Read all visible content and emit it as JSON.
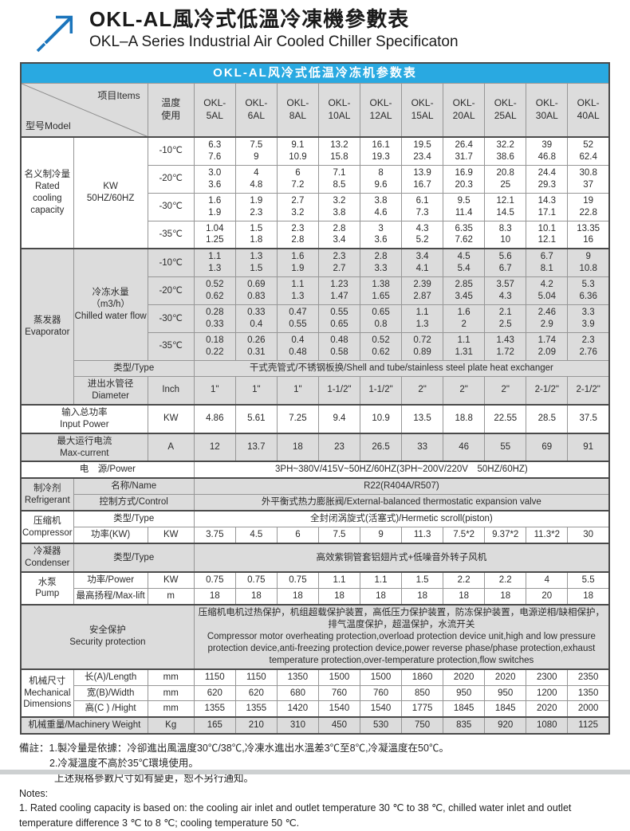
{
  "page": {
    "title_zh": "OKL-AL風冷式低溫冷凍機參數表",
    "title_en": "OKL–A Series Industrial Air Cooled Chiller Specificaton",
    "accent_blue": "#29a9e1",
    "arrow_blue": "#1b75bc",
    "section_gray": "#dcdcdc"
  },
  "table": {
    "title": "OKL-AL风冷式低温冷冻机参数表",
    "corner": {
      "model_label": "型号Model",
      "items_label": "项目Items"
    },
    "temp_header": "温度\n使用",
    "models": [
      "OKL-\n5AL",
      "OKL-\n6AL",
      "OKL-\n8AL",
      "OKL-\n10AL",
      "OKL-\n12AL",
      "OKL-\n15AL",
      "OKL-\n20AL",
      "OKL-\n25AL",
      "OKL-\n30AL",
      "OKL-\n40AL"
    ],
    "rows": [
      {
        "bg": "white",
        "section": true,
        "cells": [
          {
            "t": "名义制冷量\nRated\ncooling\ncapacity",
            "k": "lab1",
            "rs": 4
          },
          {
            "t": "KW\n50HZ/60HZ",
            "k": "lab2",
            "rs": 4
          },
          {
            "t": "-10℃",
            "k": "unit"
          },
          {
            "t": "6.3\n7.6"
          },
          {
            "t": "7.5\n9"
          },
          {
            "t": "9.1\n10.9"
          },
          {
            "t": "13.2\n15.8"
          },
          {
            "t": "16.1\n19.3"
          },
          {
            "t": "19.5\n23.4"
          },
          {
            "t": "26.4\n31.7"
          },
          {
            "t": "32.2\n38.6"
          },
          {
            "t": "39\n46.8"
          },
          {
            "t": "52\n62.4"
          }
        ]
      },
      {
        "bg": "white",
        "cells": [
          {
            "t": "-20℃",
            "k": "unit"
          },
          {
            "t": "3.0\n3.6"
          },
          {
            "t": "4\n4.8"
          },
          {
            "t": "6\n7.2"
          },
          {
            "t": "7.1\n8.5"
          },
          {
            "t": "8\n9.6"
          },
          {
            "t": "13.9\n16.7"
          },
          {
            "t": "16.9\n20.3"
          },
          {
            "t": "20.8\n25"
          },
          {
            "t": "24.4\n29.3"
          },
          {
            "t": "30.8\n37"
          }
        ]
      },
      {
        "bg": "white",
        "cells": [
          {
            "t": "-30℃",
            "k": "unit"
          },
          {
            "t": "1.6\n1.9"
          },
          {
            "t": "1.9\n2.3"
          },
          {
            "t": "2.7\n3.2"
          },
          {
            "t": "3.2\n3.8"
          },
          {
            "t": "3.8\n4.6"
          },
          {
            "t": "6.1\n7.3"
          },
          {
            "t": "9.5\n11.4"
          },
          {
            "t": "12.1\n14.5"
          },
          {
            "t": "14.3\n17.1"
          },
          {
            "t": "19\n22.8"
          }
        ]
      },
      {
        "bg": "white",
        "cells": [
          {
            "t": "-35℃",
            "k": "unit"
          },
          {
            "t": "1.04\n1.25"
          },
          {
            "t": "1.5\n1.8"
          },
          {
            "t": "2.3\n2.8"
          },
          {
            "t": "2.8\n3.4"
          },
          {
            "t": "3\n3.6"
          },
          {
            "t": "4.3\n5.2"
          },
          {
            "t": "6.35\n7.62"
          },
          {
            "t": "8.3\n10"
          },
          {
            "t": "10.1\n12.1"
          },
          {
            "t": "13.35\n16"
          }
        ]
      },
      {
        "bg": "gray",
        "section": true,
        "cells": [
          {
            "t": "蒸发器\nEvaporator",
            "k": "lab1",
            "rs": 6
          },
          {
            "t": "冷冻水量（m3/h）\nChilled water flow",
            "k": "lab2",
            "rs": 4
          },
          {
            "t": "-10℃",
            "k": "unit"
          },
          {
            "t": "1.1\n1.3"
          },
          {
            "t": "1.3\n1.5"
          },
          {
            "t": "1.6\n1.9"
          },
          {
            "t": "2.3\n2.7"
          },
          {
            "t": "2.8\n3.3"
          },
          {
            "t": "3.4\n4.1"
          },
          {
            "t": "4.5\n5.4"
          },
          {
            "t": "5.6\n6.7"
          },
          {
            "t": "6.7\n8.1"
          },
          {
            "t": "9\n10.8"
          }
        ]
      },
      {
        "bg": "gray",
        "cells": [
          {
            "t": "-20℃",
            "k": "unit"
          },
          {
            "t": "0.52\n0.62"
          },
          {
            "t": "0.69\n0.83"
          },
          {
            "t": "1.1\n1.3"
          },
          {
            "t": "1.23\n1.47"
          },
          {
            "t": "1.38\n1.65"
          },
          {
            "t": "2.39\n2.87"
          },
          {
            "t": "2.85\n3.45"
          },
          {
            "t": "3.57\n4.3"
          },
          {
            "t": "4.2\n5.04"
          },
          {
            "t": "5.3\n6.36"
          }
        ]
      },
      {
        "bg": "gray",
        "cells": [
          {
            "t": "-30℃",
            "k": "unit"
          },
          {
            "t": "0.28\n0.33"
          },
          {
            "t": "0.33\n0.4"
          },
          {
            "t": "0.47\n0.55"
          },
          {
            "t": "0.55\n0.65"
          },
          {
            "t": "0.65\n0.8"
          },
          {
            "t": "1.1\n1.3"
          },
          {
            "t": "1.6\n2"
          },
          {
            "t": "2.1\n2.5"
          },
          {
            "t": "2.46\n2.9"
          },
          {
            "t": "3.3\n3.9"
          }
        ]
      },
      {
        "bg": "gray",
        "cells": [
          {
            "t": "-35℃",
            "k": "unit"
          },
          {
            "t": "0.18\n0.22"
          },
          {
            "t": "0.26\n0.31"
          },
          {
            "t": "0.4\n0.48"
          },
          {
            "t": "0.48\n0.58"
          },
          {
            "t": "0.52\n0.62"
          },
          {
            "t": "0.72\n0.89"
          },
          {
            "t": "1.1\n1.31"
          },
          {
            "t": "1.43\n1.72"
          },
          {
            "t": "1.74\n2.09"
          },
          {
            "t": "2.3\n2.76"
          }
        ]
      },
      {
        "bg": "gray",
        "cells": [
          {
            "t": "类型/Type",
            "k": "lab2",
            "cs": 2
          },
          {
            "t": "干式壳管式/不锈钢板换/Shell and tube/stainless steel plate heat exchanger",
            "k": "merged",
            "cs": 10
          }
        ]
      },
      {
        "bg": "gray",
        "cells": [
          {
            "t": "进出水管径\nDiameter",
            "k": "lab2"
          },
          {
            "t": "Inch",
            "k": "unit"
          },
          {
            "t": "1\""
          },
          {
            "t": "1\""
          },
          {
            "t": "1\""
          },
          {
            "t": "1-1/2\""
          },
          {
            "t": "1-1/2\""
          },
          {
            "t": "2\""
          },
          {
            "t": "2\""
          },
          {
            "t": "2\""
          },
          {
            "t": "2-1/2\""
          },
          {
            "t": "2-1/2\""
          }
        ]
      },
      {
        "bg": "white",
        "section": true,
        "cells": [
          {
            "t": "输入总功率\nInput Power",
            "k": "lab2",
            "cs": 2
          },
          {
            "t": "KW",
            "k": "unit"
          },
          {
            "t": "4.86"
          },
          {
            "t": "5.61"
          },
          {
            "t": "7.25"
          },
          {
            "t": "9.4"
          },
          {
            "t": "10.9"
          },
          {
            "t": "13.5"
          },
          {
            "t": "18.8"
          },
          {
            "t": "22.55"
          },
          {
            "t": "28.5"
          },
          {
            "t": "37.5"
          }
        ]
      },
      {
        "bg": "gray",
        "section": true,
        "cells": [
          {
            "t": "最大运行电流\nMax-current",
            "k": "lab2",
            "cs": 2
          },
          {
            "t": "A",
            "k": "unit"
          },
          {
            "t": "12"
          },
          {
            "t": "13.7"
          },
          {
            "t": "18"
          },
          {
            "t": "23"
          },
          {
            "t": "26.5"
          },
          {
            "t": "33"
          },
          {
            "t": "46"
          },
          {
            "t": "55"
          },
          {
            "t": "69"
          },
          {
            "t": "91"
          }
        ]
      },
      {
        "bg": "white",
        "section": true,
        "cells": [
          {
            "t": "电　源/Power",
            "k": "lab2",
            "cs": 3
          },
          {
            "t": "3PH~380V/415V~50HZ/60HZ(3PH~200V/220V　50HZ/60HZ)",
            "k": "merged",
            "cs": 10
          }
        ]
      },
      {
        "bg": "gray",
        "section": true,
        "cells": [
          {
            "t": "制冷剂\nRefrigerant",
            "k": "lab1",
            "rs": 2
          },
          {
            "t": "名称/Name",
            "k": "lab2",
            "cs": 2
          },
          {
            "t": "R22(R404A/R507)",
            "k": "merged",
            "cs": 10
          }
        ]
      },
      {
        "bg": "gray",
        "cells": [
          {
            "t": "控制方式/Control",
            "k": "lab2",
            "cs": 2
          },
          {
            "t": "外平衡式热力膨胀阀/External-balanced thermostatic expansion valve",
            "k": "merged",
            "cs": 10
          }
        ]
      },
      {
        "bg": "white",
        "section": true,
        "cells": [
          {
            "t": "压缩机\nCompressor",
            "k": "lab1",
            "rs": 2
          },
          {
            "t": "类型/Type",
            "k": "lab2",
            "cs": 2
          },
          {
            "t": "全封闭涡旋式(活塞式)/Hermetic scroll(piston)",
            "k": "merged",
            "cs": 10
          }
        ]
      },
      {
        "bg": "white",
        "cells": [
          {
            "t": "功率(KW)",
            "k": "lab2"
          },
          {
            "t": "KW",
            "k": "unit"
          },
          {
            "t": "3.75"
          },
          {
            "t": "4.5"
          },
          {
            "t": "6"
          },
          {
            "t": "7.5"
          },
          {
            "t": "9"
          },
          {
            "t": "11.3"
          },
          {
            "t": "7.5*2"
          },
          {
            "t": "9.37*2"
          },
          {
            "t": "11.3*2"
          },
          {
            "t": "30"
          }
        ]
      },
      {
        "bg": "gray",
        "section": true,
        "cells": [
          {
            "t": "冷凝器\nCondenser",
            "k": "lab1"
          },
          {
            "t": "类型/Type",
            "k": "lab2",
            "cs": 2
          },
          {
            "t": "高效紫铜管套铝翅片式+低噪音外转子风机",
            "k": "merged",
            "cs": 10
          }
        ]
      },
      {
        "bg": "white",
        "section": true,
        "cells": [
          {
            "t": "水泵\nPump",
            "k": "lab1",
            "rs": 2
          },
          {
            "t": "功率/Power",
            "k": "lab2"
          },
          {
            "t": "KW",
            "k": "unit"
          },
          {
            "t": "0.75"
          },
          {
            "t": "0.75"
          },
          {
            "t": "0.75"
          },
          {
            "t": "1.1"
          },
          {
            "t": "1.1"
          },
          {
            "t": "1.5"
          },
          {
            "t": "2.2"
          },
          {
            "t": "2.2"
          },
          {
            "t": "4"
          },
          {
            "t": "5.5"
          }
        ]
      },
      {
        "bg": "white",
        "cells": [
          {
            "t": "最高扬程/Max-lift",
            "k": "lab2"
          },
          {
            "t": "m",
            "k": "unit"
          },
          {
            "t": "18"
          },
          {
            "t": "18"
          },
          {
            "t": "18"
          },
          {
            "t": "18"
          },
          {
            "t": "18"
          },
          {
            "t": "18"
          },
          {
            "t": "18"
          },
          {
            "t": "18"
          },
          {
            "t": "20"
          },
          {
            "t": "18"
          }
        ]
      },
      {
        "bg": "gray",
        "section": true,
        "cells": [
          {
            "t": "安全保护\nSecurity protection",
            "k": "lab2",
            "cs": 3
          },
          {
            "t": "压缩机电机过热保护，机组超载保护装置，高低压力保护装置，防冻保护装置，电源逆相/缺相保护，排气温度保护，超温保护，水流开关\nCompressor motor overheating protection,overload protection device unit,high and low pressure protection device,anti-freezing protection device,power reverse phase/phase protection,exhaust temperature protection,over-temperature protection,flow switches",
            "k": "longtext",
            "cs": 10
          }
        ]
      },
      {
        "bg": "white",
        "section": true,
        "cells": [
          {
            "t": "机械尺寸\nMechanical\nDimensions",
            "k": "lab1",
            "rs": 3
          },
          {
            "t": "长(A)/Length",
            "k": "lab2"
          },
          {
            "t": "mm",
            "k": "unit"
          },
          {
            "t": "1150"
          },
          {
            "t": "1150"
          },
          {
            "t": "1350"
          },
          {
            "t": "1500"
          },
          {
            "t": "1500"
          },
          {
            "t": "1860"
          },
          {
            "t": "2020"
          },
          {
            "t": "2020"
          },
          {
            "t": "2300"
          },
          {
            "t": "2350"
          }
        ]
      },
      {
        "bg": "white",
        "cells": [
          {
            "t": "宽(B)/Width",
            "k": "lab2"
          },
          {
            "t": "mm",
            "k": "unit"
          },
          {
            "t": "620"
          },
          {
            "t": "620"
          },
          {
            "t": "680"
          },
          {
            "t": "760"
          },
          {
            "t": "760"
          },
          {
            "t": "850"
          },
          {
            "t": "950"
          },
          {
            "t": "950"
          },
          {
            "t": "1200"
          },
          {
            "t": "1350"
          }
        ]
      },
      {
        "bg": "white",
        "cells": [
          {
            "t": "高(C ) /Hight",
            "k": "lab2"
          },
          {
            "t": "mm",
            "k": "unit"
          },
          {
            "t": "1355"
          },
          {
            "t": "1355"
          },
          {
            "t": "1420"
          },
          {
            "t": "1540"
          },
          {
            "t": "1540"
          },
          {
            "t": "1775"
          },
          {
            "t": "1845"
          },
          {
            "t": "1845"
          },
          {
            "t": "2020"
          },
          {
            "t": "2000"
          }
        ]
      },
      {
        "bg": "gray",
        "section": true,
        "cells": [
          {
            "t": "机械重量/Machinery Weight",
            "k": "lab2",
            "cs": 2
          },
          {
            "t": "Kg",
            "k": "unit"
          },
          {
            "t": "165"
          },
          {
            "t": "210"
          },
          {
            "t": "310"
          },
          {
            "t": "450"
          },
          {
            "t": "530"
          },
          {
            "t": "750"
          },
          {
            "t": "835"
          },
          {
            "t": "920"
          },
          {
            "t": "1080"
          },
          {
            "t": "1125"
          }
        ]
      }
    ]
  },
  "notes": {
    "lines": [
      {
        "text": "備註：1.製冷量是依據：冷卻進出風溫度30℃/38℃,冷凍水進出水溫差3℃至8℃,冷凝溫度在50℃。",
        "indent": 0
      },
      {
        "text": "2.冷凝溫度不高於35℃環境使用。",
        "indent": 38
      },
      {
        "text": "上述規格參數尺寸如有變更，恕不另行通知。",
        "indent": 44
      },
      {
        "text": "Notes:",
        "indent": 0
      },
      {
        "text": "1. Rated cooling capacity is based on: the cooling air inlet and outlet temperature 30 ℃ to 38 ℃, chilled water inlet and outlet temperature difference 3 ℃ to 8 ℃; cooling temperature 50 ℃.",
        "indent": 0
      }
    ]
  }
}
